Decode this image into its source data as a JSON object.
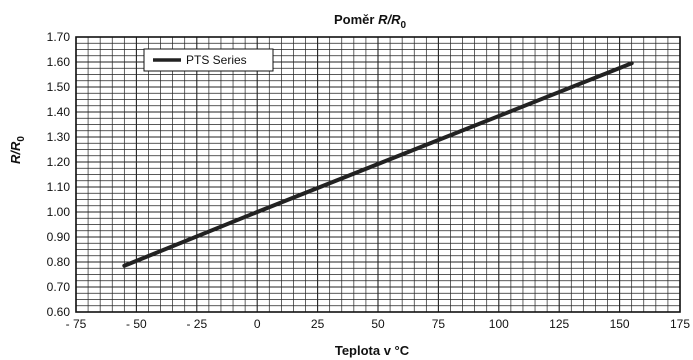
{
  "chart_data": {
    "type": "line",
    "title_main": "Poměr ",
    "title_var": "R/R",
    "title_sub": "0",
    "xlabel": "Teplota v °C",
    "ylabel_var": "R/R",
    "ylabel_sub": "0",
    "xlim": [
      -75,
      175
    ],
    "ylim": [
      0.6,
      1.7
    ],
    "xticks": [
      -75,
      -50,
      -25,
      0,
      25,
      50,
      75,
      100,
      125,
      150,
      175
    ],
    "xtick_labels": [
      "- 75",
      "- 50",
      "- 25",
      "0",
      "25",
      "50",
      "75",
      "100",
      "125",
      "150",
      "175"
    ],
    "yticks": [
      0.6,
      0.7,
      0.8,
      0.9,
      1.0,
      1.1,
      1.2,
      1.3,
      1.4,
      1.5,
      1.6,
      1.7
    ],
    "ytick_labels": [
      "0.60",
      "0.70",
      "0.80",
      "0.90",
      "1.00",
      "1.10",
      "1.20",
      "1.30",
      "1.40",
      "1.50",
      "1.60",
      "1.70"
    ],
    "grid": true,
    "minor_grid_step_x": 5,
    "minor_grid_step_y": 0.025,
    "legend_position": "top-left",
    "series": [
      {
        "name": "PTS Series",
        "color": "#222222",
        "x": [
          -55,
          0,
          155
        ],
        "y": [
          0.785,
          1.0,
          1.595
        ]
      }
    ]
  }
}
